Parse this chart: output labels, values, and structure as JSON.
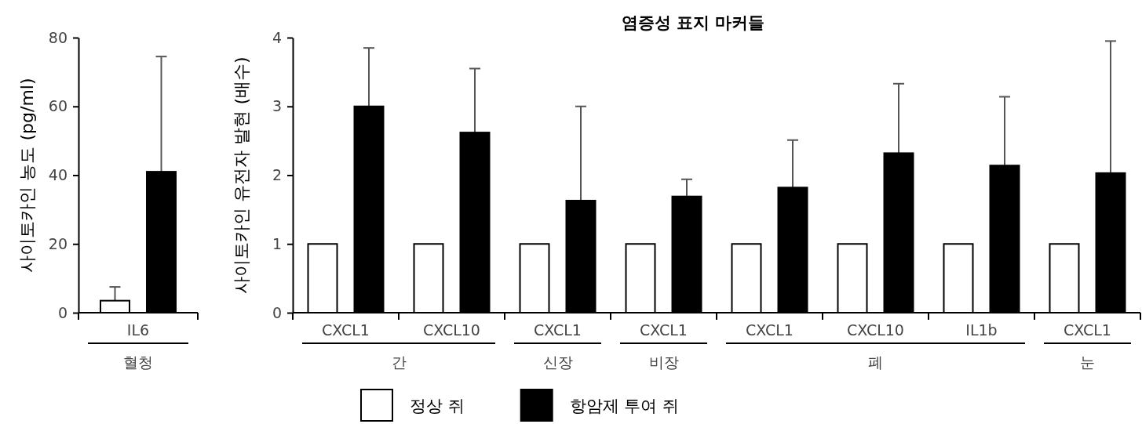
{
  "chart_data": [
    {
      "type": "bar",
      "ylabel": "사이토카인 농도 (pg/ml)",
      "categories": [
        "IL6"
      ],
      "ylim": [
        0,
        80
      ],
      "yticks": [
        0,
        20,
        40,
        60,
        80
      ],
      "grid": false,
      "legend": false,
      "annotations": [
        "혈청"
      ],
      "series": [
        {
          "color": "#ffffff",
          "values": [
            3.5
          ],
          "errors": [
            [
              3.5,
              7.5
            ]
          ]
        },
        {
          "color": "#000000",
          "values": [
            41
          ],
          "errors": [
            [
              41,
              74.5
            ]
          ]
        }
      ]
    },
    {
      "type": "bar",
      "title": "염증성 표지 마커들",
      "ylabel": "사이토카인 유전자 발현 (배수)",
      "categories": [
        "CXCL1",
        "CXCL10",
        "CXCL1",
        "CXCL1",
        "CXCL1",
        "CXCL10",
        "IL1b",
        "CXCL1"
      ],
      "ylim": [
        0,
        4
      ],
      "yticks": [
        0,
        1,
        2,
        3,
        4
      ],
      "grid": false,
      "legend": "bottom",
      "annotations": [
        "간",
        "신장",
        "비장",
        "폐",
        "눈"
      ],
      "series": [
        {
          "name": "정상 쥐",
          "color": "#ffffff",
          "values": [
            1,
            1,
            1,
            1,
            1,
            1,
            1,
            1
          ],
          "errors": [
            null,
            null,
            null,
            null,
            null,
            null,
            null,
            null
          ]
        },
        {
          "name": "항암제 투여 쥐",
          "color": "#000000",
          "values": [
            3.0,
            2.62,
            1.63,
            1.69,
            1.82,
            2.32,
            2.14,
            2.03
          ],
          "errors": [
            [
              3.0,
              3.85
            ],
            [
              2.62,
              3.55
            ],
            [
              1.63,
              3.0
            ],
            [
              1.69,
              1.94
            ],
            [
              1.82,
              2.51
            ],
            [
              2.32,
              3.33
            ],
            [
              2.14,
              3.14
            ],
            [
              2.03,
              3.95
            ]
          ]
        }
      ]
    }
  ]
}
